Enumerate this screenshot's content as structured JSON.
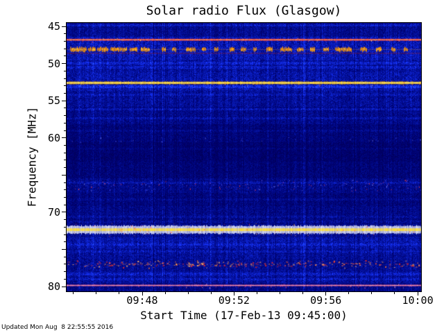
{
  "page": {
    "footer": "Updated Mon Aug  8 22:55:55 2016"
  },
  "chart_data": {
    "type": "heatmap",
    "subtype": "radio-spectrogram",
    "title": "Solar radio Flux (Glasgow)",
    "xlabel": "Start Time (17-Feb-13 09:45:00)",
    "ylabel": "Frequency [MHz]",
    "colors": {
      "frame": "#000000",
      "text": "#000000",
      "background_deep_blue": "#000060",
      "line_red_47mhz": "#ff3030",
      "line_yellow_52mhz": "#ffc400",
      "band_white_72mhz": "#e8ecff",
      "line_pink_80mhz": "#ff5f9e",
      "burst_orange_48mhz": "#ff9800"
    },
    "x_axis": {
      "unit": "minutes_after_09:00",
      "min": 44.705,
      "max": 60.15,
      "major_ticks": [
        {
          "t": 48,
          "label": "09:48"
        },
        {
          "t": 52,
          "label": "09:52"
        },
        {
          "t": 56,
          "label": "09:56"
        },
        {
          "t": 60,
          "label": "10:00"
        }
      ],
      "minor_step": 1
    },
    "y_axis": {
      "unit": "MHz",
      "min": 44.53,
      "max": 80.65,
      "inverted": true,
      "major_ticks": [
        45,
        50,
        55,
        60,
        65,
        70,
        75,
        80
      ],
      "labeled_ticks": [
        "45",
        "50",
        "55",
        "60",
        "70",
        "80"
      ],
      "minor_step": 1
    },
    "noise_seed": 7,
    "bg_bands": [
      [
        44.53,
        46.4,
        50
      ],
      [
        46.4,
        49.6,
        72
      ],
      [
        49.6,
        51.2,
        58
      ],
      [
        51.2,
        53.7,
        66
      ],
      [
        53.7,
        55.8,
        55
      ],
      [
        55.8,
        58.2,
        46
      ],
      [
        58.2,
        60.6,
        36
      ],
      [
        60.6,
        63.2,
        30
      ],
      [
        63.2,
        65.4,
        35
      ],
      [
        65.4,
        67.4,
        46
      ],
      [
        67.4,
        69.2,
        38
      ],
      [
        69.2,
        71.7,
        44
      ],
      [
        71.7,
        73.4,
        52
      ],
      [
        73.4,
        74.9,
        66
      ],
      [
        74.9,
        76.3,
        56
      ],
      [
        76.3,
        77.9,
        52
      ],
      [
        77.9,
        79.5,
        58
      ],
      [
        79.5,
        80.65,
        46
      ]
    ],
    "row_lines": [
      {
        "f": 44.85,
        "w": 0.15,
        "b": 1.6
      },
      {
        "f": 49.95,
        "w": 0.18,
        "b": 1.5
      },
      {
        "f": 50.5,
        "w": 0.15,
        "b": 1.4
      },
      {
        "f": 53.15,
        "w": 0.18,
        "b": 1.6
      },
      {
        "f": 54.2,
        "w": 0.15,
        "b": 1.3
      },
      {
        "f": 56.15,
        "w": 0.18,
        "b": 1.5
      },
      {
        "f": 57.35,
        "w": 0.15,
        "b": 1.4
      },
      {
        "f": 59.05,
        "w": 0.15,
        "b": 1.3
      },
      {
        "f": 61.5,
        "w": 0.15,
        "b": 1.25
      },
      {
        "f": 66.05,
        "w": 0.18,
        "b": 1.4
      },
      {
        "f": 68.3,
        "w": 0.15,
        "b": 1.3
      },
      {
        "f": 70.6,
        "w": 0.15,
        "b": 1.3
      },
      {
        "f": 71.3,
        "w": 0.15,
        "b": 1.25
      },
      {
        "f": 74.35,
        "w": 0.18,
        "b": 1.35
      },
      {
        "f": 75.3,
        "w": 0.15,
        "b": 1.3
      },
      {
        "f": 78.35,
        "w": 0.18,
        "b": 1.4
      },
      {
        "f": 79.05,
        "w": 0.15,
        "b": 1.35
      }
    ],
    "solid_bands": [
      {
        "f": 46.8,
        "h": 0.26,
        "color": "#ff3030",
        "core": "#ffcf6a",
        "alpha": 0.95
      },
      {
        "f": 48.62,
        "h": 0.12,
        "color": "#b41900",
        "alpha": 0.45
      },
      {
        "f": 52.6,
        "h": 0.34,
        "color": "#ffc400",
        "core": "#fff9a0",
        "alpha": 0.97
      },
      {
        "f": 72.35,
        "h": 1.05,
        "color": "#e8ecff",
        "core": "#ffdf30",
        "alpha": 0.93
      },
      {
        "f": 79.85,
        "h": 0.2,
        "color": "#ff5f9e",
        "core": "#ffb0b0",
        "alpha": 0.8
      }
    ],
    "burst_band": {
      "f": 48.1,
      "h": 0.5,
      "color": "#ff9800",
      "core": "#ffd040",
      "segments_min": [
        [
          44.85,
          45.55
        ],
        [
          45.65,
          45.95
        ],
        [
          46.05,
          46.5
        ],
        [
          46.6,
          47.3
        ],
        [
          47.45,
          47.75
        ],
        [
          47.95,
          48.3
        ],
        [
          48.85,
          49.0
        ],
        [
          49.3,
          49.45
        ],
        [
          49.9,
          50.3
        ],
        [
          50.6,
          50.75
        ],
        [
          51.15,
          51.3
        ],
        [
          51.8,
          52.0
        ],
        [
          52.3,
          52.5
        ],
        [
          52.85,
          52.95
        ],
        [
          53.4,
          53.65
        ],
        [
          54.0,
          54.5
        ],
        [
          54.75,
          55.0
        ],
        [
          55.3,
          55.5
        ],
        [
          55.9,
          56.1
        ],
        [
          56.4,
          57.1
        ],
        [
          57.5,
          57.75
        ],
        [
          58.2,
          58.4
        ],
        [
          58.85,
          59.0
        ],
        [
          59.4,
          59.55
        ]
      ]
    },
    "speckle_bands": [
      {
        "f": 46.8,
        "spread": 0.3,
        "count": 70,
        "size": 1,
        "colors": [
          "#ff5050",
          "#ffe080"
        ]
      },
      {
        "f": 52.6,
        "spread": 0.4,
        "count": 90,
        "size": 1,
        "colors": [
          "#ff7020",
          "#ffc040"
        ]
      },
      {
        "f": 60.2,
        "spread": 0.5,
        "count": 40,
        "size": 1,
        "colors": [
          "#4858ff",
          "#6a7aff"
        ]
      },
      {
        "f": 66.3,
        "spread": 0.9,
        "count": 160,
        "size": 1,
        "colors": [
          "#ff4848",
          "#5858ff",
          "#8890ff"
        ]
      },
      {
        "f": 72.35,
        "spread": 1.0,
        "count": 130,
        "size": 1,
        "colors": [
          "#ff5030",
          "#ffa040"
        ]
      },
      {
        "f": 76.95,
        "spread": 0.55,
        "count": 300,
        "size": 2,
        "colors": [
          "#ff2e1e",
          "#ff7a3a",
          "#ffb066"
        ]
      },
      {
        "f": 79.85,
        "spread": 0.3,
        "count": 90,
        "size": 1,
        "colors": [
          "#ff4f8f",
          "#ff9fbf"
        ]
      }
    ]
  }
}
